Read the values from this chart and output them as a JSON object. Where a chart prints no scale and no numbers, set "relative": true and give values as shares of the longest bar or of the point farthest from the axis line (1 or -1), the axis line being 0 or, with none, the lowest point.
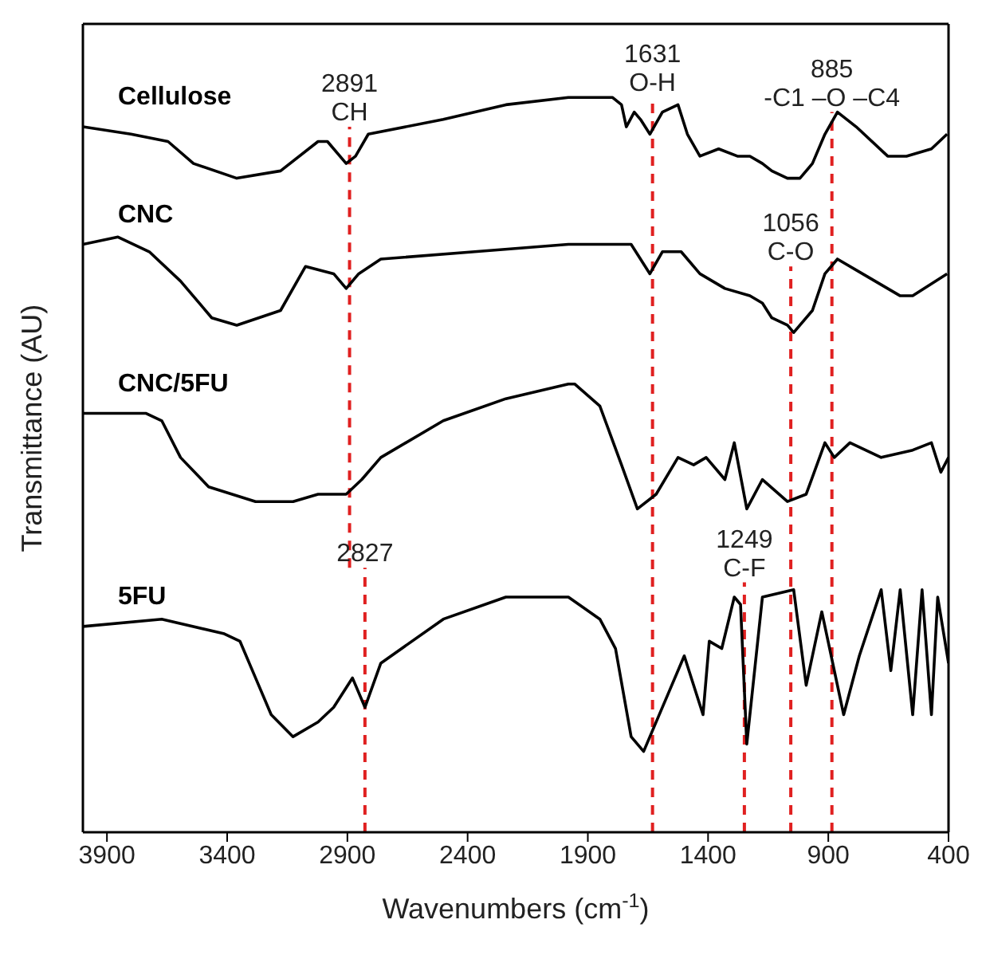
{
  "chart_data": {
    "type": "line",
    "xlabel": "Wavenumbers (cm$^{-1}$)",
    "ylabel": "Transmittance (AU)",
    "relative": true,
    "xlim": [
      4000,
      400
    ],
    "xticks": [
      3900,
      3400,
      2900,
      2400,
      1900,
      1400,
      900,
      400
    ],
    "legend": false,
    "grid": false,
    "marker": "none",
    "line_style": "solid",
    "series": [
      {
        "name": "Cellulose",
        "color": "#000000",
        "x": [
          4000,
          3800,
          3646,
          3540,
          3360,
          3178,
          3022,
          2983,
          2905,
          2866,
          2813,
          2501,
          2241,
          1981,
          1798,
          1760,
          1740,
          1707,
          1681,
          1642,
          1590,
          1525,
          1486,
          1434,
          1356,
          1278,
          1226,
          1174,
          1135,
          1070,
          1018,
          966,
          914,
          862,
          784,
          653,
          575,
          471,
          406
        ],
        "values": [
          0.96,
          0.95,
          0.94,
          0.91,
          0.89,
          0.9,
          0.94,
          0.94,
          0.91,
          0.92,
          0.95,
          0.97,
          0.99,
          1.0,
          1.0,
          0.99,
          0.96,
          0.98,
          0.97,
          0.95,
          0.98,
          0.99,
          0.95,
          0.92,
          0.93,
          0.92,
          0.92,
          0.91,
          0.9,
          0.89,
          0.89,
          0.91,
          0.95,
          0.98,
          0.96,
          0.92,
          0.92,
          0.93,
          0.95
        ]
      },
      {
        "name": "CNC",
        "color": "#000000",
        "x": [
          4000,
          3854,
          3724,
          3594,
          3464,
          3360,
          3178,
          3074,
          2957,
          2905,
          2853,
          2761,
          2371,
          1981,
          1720,
          1642,
          1590,
          1512,
          1434,
          1330,
          1226,
          1174,
          1135,
          1070,
          1044,
          966,
          914,
          862,
          758,
          601,
          549,
          406
        ],
        "values": [
          0.8,
          0.81,
          0.79,
          0.75,
          0.7,
          0.69,
          0.71,
          0.77,
          0.76,
          0.74,
          0.76,
          0.78,
          0.79,
          0.8,
          0.8,
          0.76,
          0.79,
          0.79,
          0.76,
          0.74,
          0.73,
          0.72,
          0.7,
          0.69,
          0.68,
          0.71,
          0.76,
          0.78,
          0.76,
          0.73,
          0.73,
          0.76
        ]
      },
      {
        "name": "CNC/5FU",
        "color": "#000000",
        "x": [
          4000,
          3737,
          3672,
          3594,
          3477,
          3282,
          3126,
          3022,
          2905,
          2840,
          2761,
          2501,
          2241,
          1981,
          1955,
          1850,
          1760,
          1694,
          1616,
          1525,
          1460,
          1408,
          1330,
          1291,
          1239,
          1174,
          1070,
          992,
          914,
          875,
          810,
          680,
          549,
          471,
          432,
          400
        ],
        "values": [
          0.57,
          0.57,
          0.56,
          0.51,
          0.47,
          0.45,
          0.45,
          0.46,
          0.46,
          0.48,
          0.51,
          0.56,
          0.59,
          0.61,
          0.61,
          0.58,
          0.5,
          0.44,
          0.46,
          0.51,
          0.5,
          0.51,
          0.48,
          0.53,
          0.44,
          0.48,
          0.45,
          0.46,
          0.53,
          0.51,
          0.53,
          0.51,
          0.52,
          0.53,
          0.49,
          0.51
        ]
      },
      {
        "name": "5FU",
        "color": "#000000",
        "x": [
          4000,
          3672,
          3412,
          3347,
          3282,
          3217,
          3126,
          3022,
          2957,
          2879,
          2827,
          2761,
          2501,
          2241,
          1981,
          1850,
          1785,
          1720,
          1668,
          1564,
          1499,
          1421,
          1395,
          1343,
          1291,
          1265,
          1239,
          1174,
          1044,
          992,
          927,
          836,
          771,
          680,
          640,
          601,
          549,
          510,
          471,
          445,
          400
        ],
        "values": [
          0.28,
          0.29,
          0.27,
          0.26,
          0.21,
          0.16,
          0.13,
          0.15,
          0.17,
          0.21,
          0.17,
          0.23,
          0.29,
          0.32,
          0.32,
          0.29,
          0.25,
          0.13,
          0.11,
          0.19,
          0.24,
          0.16,
          0.26,
          0.25,
          0.32,
          0.31,
          0.12,
          0.32,
          0.33,
          0.2,
          0.3,
          0.16,
          0.24,
          0.33,
          0.22,
          0.33,
          0.16,
          0.33,
          0.16,
          0.32,
          0.23
        ]
      }
    ],
    "ref_lines": [
      {
        "axis": "x",
        "value": 2891,
        "color": "#e02020",
        "line_style": "dashed"
      },
      {
        "axis": "x",
        "value": 1631,
        "color": "#e02020",
        "line_style": "dashed"
      },
      {
        "axis": "x",
        "value": 1056,
        "color": "#e02020",
        "line_style": "dashed"
      },
      {
        "axis": "x",
        "value": 885,
        "color": "#e02020",
        "line_style": "dashed"
      },
      {
        "axis": "x",
        "value": 2827,
        "color": "#e02020",
        "line_style": "dashed"
      },
      {
        "axis": "x",
        "value": 1249,
        "color": "#e02020",
        "line_style": "dashed"
      }
    ],
    "annotations": [
      {
        "text": "2891\nCH",
        "x": 2891,
        "y": 0.96
      },
      {
        "text": "1631\nO-H",
        "x": 1631,
        "y": 1.0
      },
      {
        "text": "885\n-C1 –O –C4",
        "x": 885,
        "y": 0.98
      },
      {
        "text": "1056\nC-O",
        "x": 1056,
        "y": 0.77
      },
      {
        "text": "2827",
        "x": 2827,
        "y": 0.36
      },
      {
        "text": "1249\nC-F",
        "x": 1249,
        "y": 0.34
      }
    ]
  }
}
